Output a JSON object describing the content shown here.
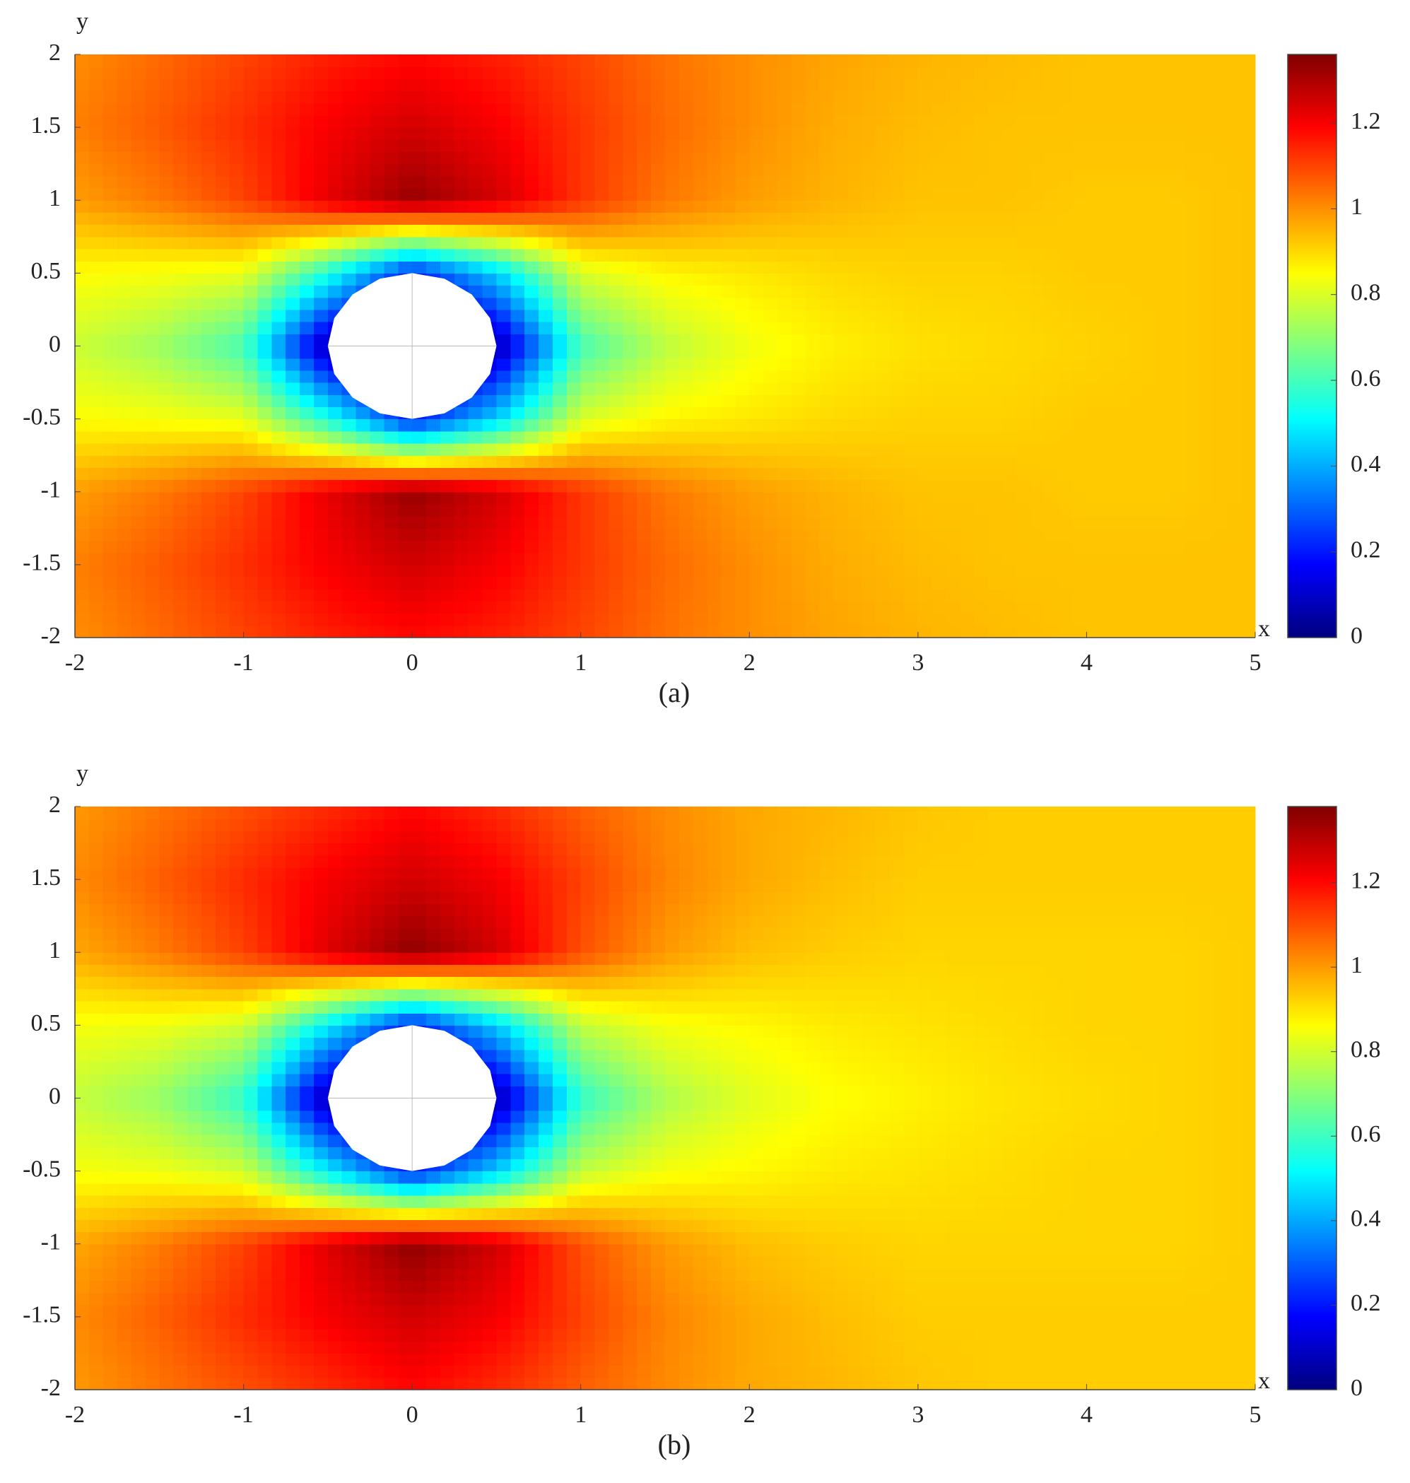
{
  "chart_data": [
    {
      "type": "contour",
      "caption": "(a)",
      "xlabel": "x",
      "ylabel": "y",
      "colormap": "jet",
      "xlim": [
        -2,
        5
      ],
      "ylim": [
        -2,
        2
      ],
      "xticks": [
        -2,
        -1,
        0,
        1,
        2,
        3,
        4,
        5
      ],
      "yticks": [
        -2,
        -1.5,
        -1,
        -0.5,
        0,
        0.5,
        1,
        1.5,
        2
      ],
      "clim": [
        0,
        1.36
      ],
      "cticks": [
        0,
        0.2,
        0.4,
        0.6,
        0.8,
        1,
        1.2
      ],
      "obstacle": {
        "x": 0,
        "y": 0,
        "r": 0.5
      },
      "x": [
        -2,
        -1.5,
        -1,
        -0.5,
        0,
        0.5,
        1,
        1.5,
        2,
        2.5,
        3,
        3.5,
        4,
        4.5,
        5
      ],
      "y": [
        -2,
        -1.5,
        -1,
        -0.5,
        0,
        0.5,
        1,
        1.5,
        2
      ],
      "z": [
        [
          1.0,
          1.05,
          1.1,
          1.15,
          1.18,
          1.15,
          1.1,
          1.04,
          1.0,
          0.97,
          0.95,
          0.94,
          0.93,
          0.93,
          0.93
        ],
        [
          1.02,
          1.07,
          1.13,
          1.2,
          1.25,
          1.2,
          1.12,
          1.05,
          1.0,
          0.96,
          0.94,
          0.93,
          0.93,
          0.93,
          0.93
        ],
        [
          0.98,
          1.03,
          1.1,
          1.22,
          1.33,
          1.25,
          1.12,
          1.03,
          0.98,
          0.95,
          0.93,
          0.93,
          0.92,
          0.92,
          0.93
        ],
        [
          0.85,
          0.84,
          0.82,
          0.55,
          0.2,
          0.45,
          0.8,
          0.86,
          0.88,
          0.9,
          0.91,
          0.91,
          0.92,
          0.92,
          0.93
        ],
        [
          0.78,
          0.72,
          0.6,
          0.05,
          0,
          0.05,
          0.6,
          0.76,
          0.83,
          0.87,
          0.89,
          0.9,
          0.91,
          0.92,
          0.93
        ],
        [
          0.85,
          0.84,
          0.82,
          0.55,
          0.2,
          0.45,
          0.8,
          0.86,
          0.88,
          0.9,
          0.91,
          0.91,
          0.92,
          0.92,
          0.93
        ],
        [
          0.98,
          1.03,
          1.1,
          1.22,
          1.33,
          1.25,
          1.12,
          1.03,
          0.98,
          0.95,
          0.93,
          0.93,
          0.92,
          0.92,
          0.93
        ],
        [
          1.02,
          1.07,
          1.13,
          1.2,
          1.25,
          1.2,
          1.12,
          1.05,
          1.0,
          0.96,
          0.94,
          0.93,
          0.93,
          0.93,
          0.93
        ],
        [
          1.0,
          1.05,
          1.1,
          1.15,
          1.18,
          1.15,
          1.1,
          1.04,
          1.0,
          0.97,
          0.95,
          0.94,
          0.93,
          0.93,
          0.93
        ]
      ]
    },
    {
      "type": "contour",
      "caption": "(b)",
      "xlabel": "x",
      "ylabel": "y",
      "colormap": "jet",
      "xlim": [
        -2,
        5
      ],
      "ylim": [
        -2,
        2
      ],
      "xticks": [
        -2,
        -1,
        0,
        1,
        2,
        3,
        4,
        5
      ],
      "yticks": [
        -2,
        -1.5,
        -1,
        -0.5,
        0,
        0.5,
        1,
        1.5,
        2
      ],
      "clim": [
        0,
        1.38
      ],
      "cticks": [
        0,
        0.2,
        0.4,
        0.6,
        0.8,
        1,
        1.2
      ],
      "obstacle": {
        "x": 0,
        "y": 0,
        "r": 0.5
      },
      "x": [
        -2,
        -1.5,
        -1,
        -0.5,
        0,
        0.5,
        1,
        1.5,
        2,
        2.5,
        3,
        3.5,
        4,
        4.5,
        5
      ],
      "y": [
        -2,
        -1.5,
        -1,
        -0.5,
        0,
        0.5,
        1,
        1.5,
        2
      ],
      "z": [
        [
          1.0,
          1.05,
          1.1,
          1.15,
          1.2,
          1.15,
          1.08,
          1.02,
          0.98,
          0.96,
          0.94,
          0.93,
          0.93,
          0.93,
          0.93
        ],
        [
          1.02,
          1.08,
          1.15,
          1.22,
          1.27,
          1.22,
          1.12,
          1.03,
          0.98,
          0.95,
          0.93,
          0.93,
          0.93,
          0.93,
          0.93
        ],
        [
          0.98,
          1.04,
          1.12,
          1.25,
          1.36,
          1.27,
          1.1,
          1.0,
          0.95,
          0.93,
          0.92,
          0.92,
          0.92,
          0.92,
          0.93
        ],
        [
          0.85,
          0.84,
          0.8,
          0.5,
          0.2,
          0.45,
          0.78,
          0.85,
          0.87,
          0.89,
          0.9,
          0.91,
          0.92,
          0.92,
          0.93
        ],
        [
          0.78,
          0.72,
          0.58,
          0.05,
          0,
          0.05,
          0.58,
          0.75,
          0.82,
          0.86,
          0.88,
          0.9,
          0.91,
          0.92,
          0.93
        ],
        [
          0.85,
          0.84,
          0.8,
          0.5,
          0.2,
          0.45,
          0.78,
          0.85,
          0.87,
          0.89,
          0.9,
          0.91,
          0.92,
          0.92,
          0.93
        ],
        [
          0.98,
          1.04,
          1.12,
          1.25,
          1.36,
          1.27,
          1.1,
          1.0,
          0.95,
          0.93,
          0.92,
          0.92,
          0.92,
          0.92,
          0.93
        ],
        [
          1.02,
          1.08,
          1.15,
          1.22,
          1.27,
          1.22,
          1.12,
          1.03,
          0.98,
          0.95,
          0.93,
          0.93,
          0.93,
          0.93,
          0.93
        ],
        [
          1.0,
          1.05,
          1.1,
          1.15,
          1.2,
          1.15,
          1.08,
          1.02,
          0.98,
          0.96,
          0.94,
          0.93,
          0.93,
          0.93,
          0.93
        ]
      ]
    }
  ]
}
